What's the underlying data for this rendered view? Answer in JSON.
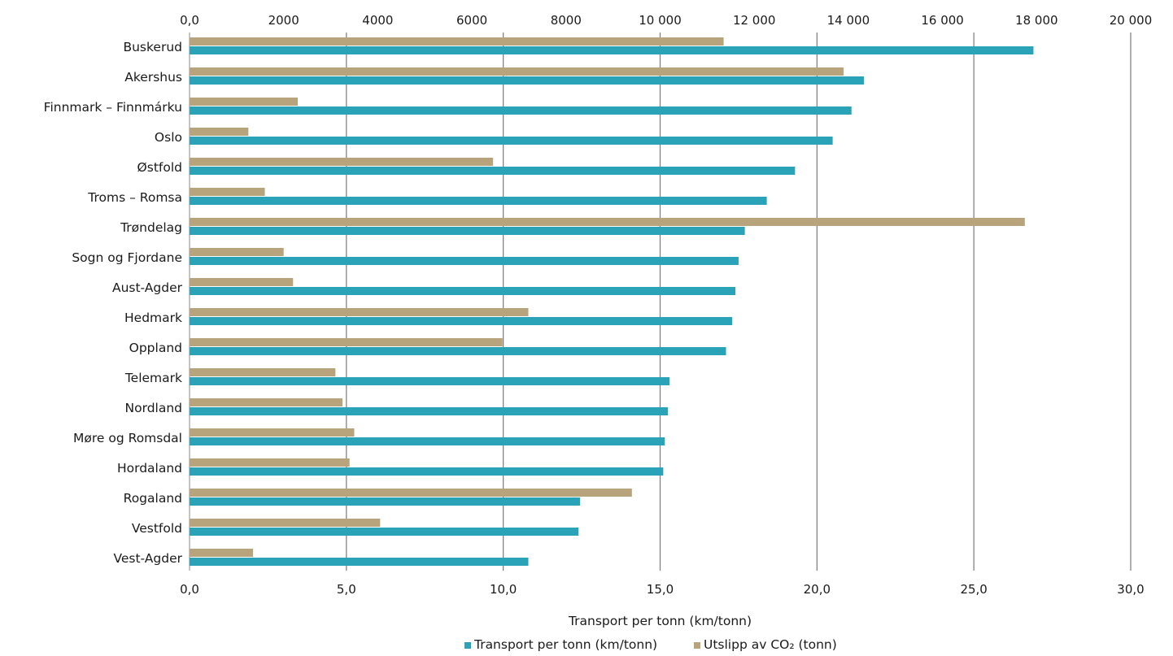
{
  "chart_data": {
    "type": "bar",
    "orientation": "horizontal",
    "categories": [
      "Buskerud",
      "Akershus",
      "Finnmark – Finnmárku",
      "Oslo",
      "Østfold",
      "Troms – Romsa",
      "Trøndelag",
      "Sogn og Fjordane",
      "Aust-Agder",
      "Hedmark",
      "Oppland",
      "Telemark",
      "Nordland",
      "Møre og Romsdal",
      "Hordaland",
      "Rogaland",
      "Vestfold",
      "Vest-Agder"
    ],
    "series": [
      {
        "name": "Transport per tonn (km/tonn)",
        "color": "#2aa3b8",
        "axis": "bottom",
        "values": [
          26.9,
          21.5,
          21.1,
          20.5,
          19.3,
          18.4,
          17.7,
          17.5,
          17.4,
          17.3,
          17.1,
          15.3,
          15.25,
          15.15,
          15.1,
          12.45,
          12.4,
          10.8
        ]
      },
      {
        "name": "Utslipp av CO₂ (tonn)",
        "color": "#b8a47c",
        "axis": "top",
        "values": [
          11350,
          13900,
          2300,
          1250,
          6450,
          1600,
          17750,
          2000,
          2200,
          7200,
          6650,
          3100,
          3250,
          3500,
          3400,
          9400,
          4050,
          1350
        ]
      }
    ],
    "x_bottom": {
      "title": "Transport per tonn (km/tonn)",
      "range": [
        0,
        30
      ],
      "ticks": [
        "0,0",
        "5,0",
        "10,0",
        "15,0",
        "20,0",
        "25,0",
        "30,0"
      ]
    },
    "x_top": {
      "title": "",
      "range": [
        0,
        20000
      ],
      "ticks": [
        "0,0",
        "2000",
        "4000",
        "6000",
        "8000",
        "10 000",
        "12 000",
        "14 000",
        "16 000",
        "18 000",
        "20 000"
      ]
    },
    "grid": true,
    "legend_position": "bottom"
  }
}
